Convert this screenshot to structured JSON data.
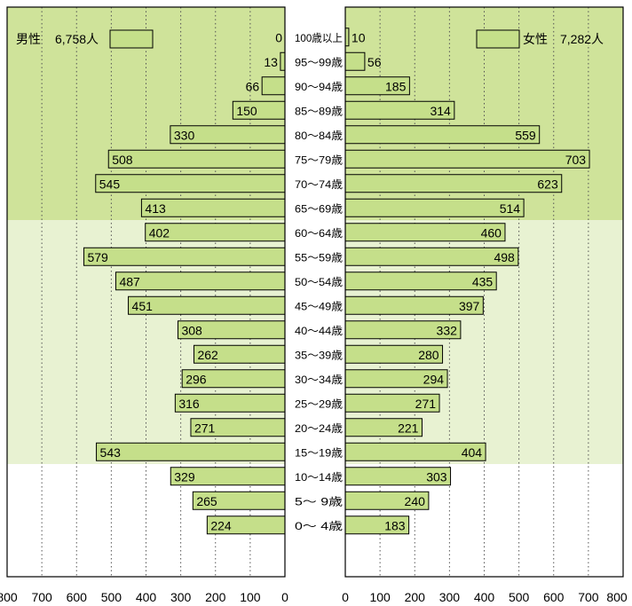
{
  "chart_data": {
    "type": "bar",
    "orientation": "horizontal",
    "layout": "population-pyramid",
    "categories": [
      "0～ 4歳",
      "5～ 9歳",
      "10～14歳",
      "15～19歳",
      "20～24歳",
      "25～29歳",
      "30～34歳",
      "35～39歳",
      "40～44歳",
      "45～49歳",
      "50～54歳",
      "55～59歳",
      "60～64歳",
      "65～69歳",
      "70～74歳",
      "75～79歳",
      "80～84歳",
      "85～89歳",
      "90～94歳",
      "95～99歳",
      "100歳以上"
    ],
    "series": [
      {
        "name": "男性",
        "side": "left",
        "values": [
          224,
          265,
          329,
          543,
          271,
          316,
          296,
          262,
          308,
          451,
          487,
          579,
          402,
          413,
          545,
          508,
          330,
          150,
          66,
          13,
          0
        ]
      },
      {
        "name": "女性",
        "side": "right",
        "values": [
          183,
          240,
          303,
          404,
          221,
          271,
          294,
          280,
          332,
          397,
          435,
          498,
          460,
          514,
          623,
          703,
          559,
          314,
          185,
          56,
          10
        ]
      }
    ],
    "legend": {
      "male": {
        "name": "男性",
        "total": "6,758人"
      },
      "female": {
        "name": "女性",
        "total": "7,282人"
      }
    },
    "xlim": [
      0,
      800
    ],
    "xticks_left": [
      "800",
      "700",
      "600",
      "500",
      "400",
      "300",
      "200",
      "100",
      "0"
    ],
    "xticks_right": [
      "0",
      "100",
      "200",
      "300",
      "400",
      "500",
      "600",
      "700",
      "800"
    ],
    "grid": "vertical dotted",
    "age_bands": [
      {
        "from_index": 13,
        "to_index": 20,
        "color": "#cfe39a"
      },
      {
        "from_index": 3,
        "to_index": 12,
        "color": "#e8f2d2"
      },
      {
        "from_index": 0,
        "to_index": 2,
        "color": "#ffffff"
      }
    ]
  },
  "colors": {
    "bar": "#c5df8a",
    "bar_edge": "#000000",
    "frame": "#000000",
    "grid": "#555555"
  }
}
